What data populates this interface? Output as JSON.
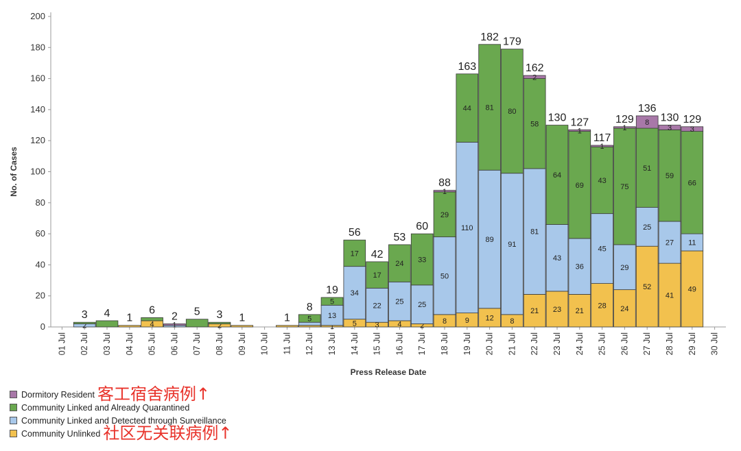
{
  "chart_data": {
    "type": "bar",
    "stacked": true,
    "xlabel": "Press Release Date",
    "ylabel": "No. of Cases",
    "ylim": [
      0,
      200
    ],
    "yticks": [
      0,
      20,
      40,
      60,
      80,
      100,
      120,
      140,
      160,
      180,
      200
    ],
    "grid": false,
    "legend_position": "bottom-left",
    "categories": [
      "01 Jul",
      "02 Jul",
      "03 Jul",
      "04 Jul",
      "05 Jul",
      "06 Jul",
      "07 Jul",
      "08 Jul",
      "09 Jul",
      "10 Jul",
      "11 Jul",
      "12 Jul",
      "13 Jul",
      "14 Jul",
      "15 Jul",
      "16 Jul",
      "17 Jul",
      "18 Jul",
      "19 Jul",
      "20 Jul",
      "21 Jul",
      "22 Jul",
      "23 Jul",
      "24 Jul",
      "25 Jul",
      "26 Jul",
      "27 Jul",
      "28 Jul",
      "29 Jul",
      "30 Jul"
    ],
    "series": [
      {
        "name": "Community Unlinked",
        "color": "#f2c14e",
        "values": [
          0,
          0,
          0,
          1,
          4,
          0,
          0,
          2,
          1,
          0,
          1,
          1,
          1,
          5,
          3,
          4,
          2,
          8,
          9,
          12,
          8,
          21,
          23,
          21,
          28,
          24,
          52,
          41,
          49,
          0
        ]
      },
      {
        "name": "Community Linked and Detected through Surveillance",
        "color": "#a8c8ea",
        "values": [
          0,
          2,
          0,
          0,
          0,
          1,
          0,
          0,
          0,
          0,
          0,
          2,
          13,
          34,
          22,
          25,
          25,
          50,
          110,
          89,
          91,
          81,
          43,
          36,
          45,
          29,
          25,
          27,
          11,
          0
        ]
      },
      {
        "name": "Community Linked and Already Quarantined",
        "color": "#6aa84f",
        "values": [
          0,
          1,
          4,
          0,
          2,
          0,
          5,
          1,
          0,
          0,
          0,
          5,
          5,
          17,
          17,
          24,
          33,
          29,
          44,
          81,
          80,
          58,
          64,
          69,
          43,
          75,
          51,
          59,
          66,
          0
        ]
      },
      {
        "name": "Dormitory Resident",
        "color": "#a878a8",
        "values": [
          0,
          0,
          0,
          0,
          0,
          1,
          0,
          0,
          0,
          0,
          0,
          0,
          0,
          0,
          0,
          0,
          0,
          1,
          0,
          0,
          0,
          2,
          0,
          1,
          1,
          1,
          8,
          3,
          3,
          0
        ]
      }
    ],
    "segment_labels_shown": [
      [],
      [],
      [],
      [],
      [
        4
      ],
      [
        1
      ],
      [],
      [
        2
      ],
      [],
      [],
      [],
      [],
      [
        1
      ],
      [
        5
      ],
      [
        3
      ],
      [
        4
      ],
      [
        2
      ],
      [
        8
      ],
      [
        9
      ],
      [
        12
      ],
      [
        8
      ],
      [
        21
      ],
      [
        23
      ],
      [
        21
      ],
      [
        28
      ],
      [
        24
      ],
      [
        52
      ],
      [
        41
      ],
      [
        49
      ],
      []
    ],
    "surveillance_labels_shown": [
      [],
      [
        2
      ],
      [],
      [],
      [],
      [],
      [],
      [],
      [],
      [],
      [],
      [],
      [
        13
      ],
      [
        34
      ],
      [
        22
      ],
      [
        25
      ],
      [
        25
      ],
      [
        50
      ],
      [
        110
      ],
      [
        89
      ],
      [
        91
      ],
      [
        81
      ],
      [
        43
      ],
      [
        36
      ],
      [
        45
      ],
      [
        29
      ],
      [
        25
      ],
      [
        27
      ],
      [
        11
      ],
      []
    ],
    "quarantined_labels_shown": [
      [],
      [],
      [],
      [],
      [],
      [],
      [],
      [],
      [],
      [],
      [],
      [
        5
      ],
      [
        5
      ],
      [
        17
      ],
      [
        17
      ],
      [
        24
      ],
      [
        33
      ],
      [
        29
      ],
      [
        44
      ],
      [
        81
      ],
      [
        80
      ],
      [
        58
      ],
      [
        64
      ],
      [
        69
      ],
      [
        43
      ],
      [
        75
      ],
      [
        51
      ],
      [
        59
      ],
      [
        66
      ],
      []
    ],
    "dormitory_labels_shown": [
      [],
      [],
      [],
      [],
      [],
      [
        1
      ],
      [],
      [],
      [],
      [],
      [],
      [],
      [],
      [],
      [],
      [],
      [],
      [
        1
      ],
      [],
      [],
      [],
      [
        2
      ],
      [],
      [
        1
      ],
      [
        1
      ],
      [
        1
      ],
      [
        8
      ],
      [
        3
      ],
      [
        3
      ],
      []
    ],
    "totals": [
      null,
      3,
      4,
      1,
      6,
      2,
      5,
      3,
      1,
      null,
      1,
      8,
      19,
      56,
      42,
      53,
      60,
      88,
      163,
      182,
      179,
      162,
      130,
      127,
      117,
      129,
      136,
      130,
      129,
      null
    ]
  },
  "legend": [
    {
      "label": "Dormitory Resident",
      "color": "#a878a8",
      "annotation": "客工宿舍病例↑"
    },
    {
      "label": "Community Linked and Already Quarantined",
      "color": "#6aa84f",
      "annotation": ""
    },
    {
      "label": "Community Linked and Detected through Surveillance",
      "color": "#a8c8ea",
      "annotation": ""
    },
    {
      "label": "Community Unlinked",
      "color": "#f2c14e",
      "annotation": "社区无关联病例↑"
    }
  ]
}
